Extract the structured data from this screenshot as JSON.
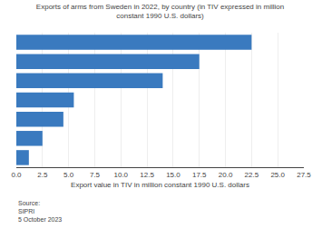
{
  "chart_data": {
    "type": "bar",
    "orientation": "horizontal",
    "title": "Exports of arms from Sweden in 2022, by country (in TIV expressed in million\nconstant 1990 U.S. dollars)",
    "x_label": "Export value in TIV in million constant 1990 U.S. dollars",
    "annotations": [
      "Source:\nSIPRI\n5 October 2023"
    ],
    "categories": [
      null,
      null,
      null,
      null,
      null,
      null,
      null
    ],
    "values": [
      22.5,
      17.5,
      14.0,
      5.5,
      4.5,
      2.5,
      1.2
    ],
    "color": "#3a7abf",
    "xlim": [
      0,
      27.5
    ],
    "xticks": [
      {
        "value": 0,
        "label": "0.0"
      },
      2.5,
      {
        "value": 5,
        "label": "5.0"
      },
      7.5,
      {
        "value": 10,
        "label": "10.0"
      },
      12.5,
      {
        "value": 15,
        "label": "15.0"
      },
      17.5,
      {
        "value": 20,
        "label": "20.0"
      },
      22.5,
      {
        "value": 25,
        "label": "25.0"
      },
      27.5
    ],
    "grid": true
  }
}
